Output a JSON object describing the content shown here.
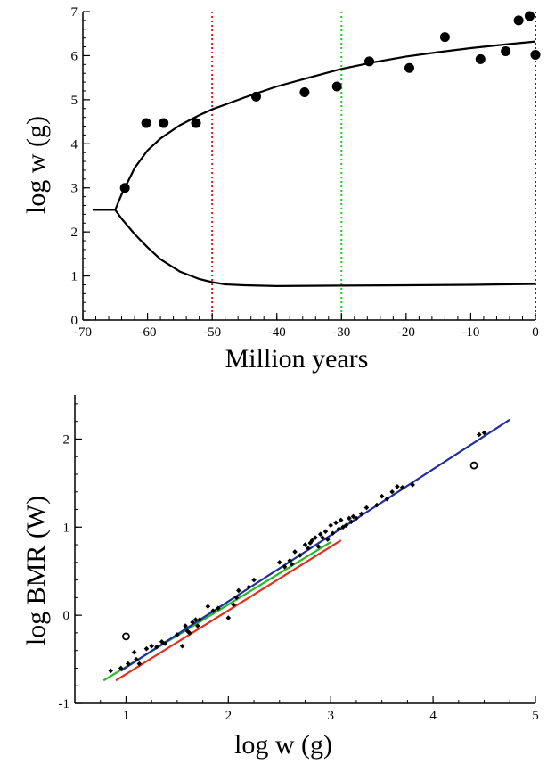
{
  "chart_data": [
    {
      "type": "scatter",
      "title": "",
      "xlabel": "Million years",
      "ylabel": "log w (g)",
      "xlim": [
        -70,
        0
      ],
      "ylim": [
        0,
        7
      ],
      "xticks": [
        "-70",
        "-60",
        "-50",
        "-40",
        "-30",
        "-20",
        "-10",
        "0"
      ],
      "yticks": [
        "0",
        "1",
        "2",
        "3",
        "4",
        "5",
        "6",
        "7"
      ],
      "grid": false,
      "series": [
        {
          "kind": "points",
          "marker": "filled-circle",
          "color": "#000000",
          "x": [
            -63.5,
            -60.2,
            -57.5,
            -52.5,
            -43.2,
            -35.7,
            -30.7,
            -25.7,
            -19.5,
            -14.0,
            -8.5,
            -4.6,
            -2.6,
            -0.9,
            0.0
          ],
          "y": [
            3.0,
            4.47,
            4.47,
            4.47,
            5.07,
            5.17,
            5.3,
            5.87,
            5.72,
            6.42,
            5.92,
            6.1,
            6.8,
            6.9,
            6.02
          ]
        },
        {
          "kind": "line",
          "color": "#000000",
          "x": [
            -68.5,
            -65,
            -64,
            -62,
            -60,
            -58,
            -55,
            -52,
            -50,
            -45,
            -40,
            -35,
            -30,
            -25,
            -20,
            -15,
            -10,
            -5,
            0
          ],
          "y": [
            2.5,
            2.5,
            2.85,
            3.45,
            3.85,
            4.12,
            4.42,
            4.65,
            4.78,
            5.05,
            5.3,
            5.5,
            5.7,
            5.85,
            5.98,
            6.08,
            6.17,
            6.25,
            6.32
          ]
        },
        {
          "kind": "line",
          "color": "#000000",
          "x": [
            -65,
            -64,
            -62,
            -60,
            -58,
            -55,
            -52,
            -50,
            -48,
            -45,
            -40,
            -30,
            -20,
            -10,
            0
          ],
          "y": [
            2.5,
            2.3,
            1.95,
            1.65,
            1.38,
            1.1,
            0.93,
            0.86,
            0.81,
            0.79,
            0.77,
            0.78,
            0.79,
            0.8,
            0.82
          ]
        }
      ],
      "vlines": [
        {
          "x": -50,
          "color": "#d62020",
          "style": "dotted"
        },
        {
          "x": -30,
          "color": "#22cc22",
          "style": "dotted"
        },
        {
          "x": 0,
          "color": "#2222cc",
          "style": "dotted"
        }
      ]
    },
    {
      "type": "scatter",
      "title": "",
      "xlabel": "log w (g)",
      "ylabel": "log BMR (W)",
      "xlim": [
        0.5,
        5
      ],
      "ylim": [
        -1,
        2.5
      ],
      "xticks": [
        "1",
        "2",
        "3",
        "4",
        "5"
      ],
      "yticks": [
        "-1",
        "0",
        "1",
        "2"
      ],
      "grid": false,
      "series": [
        {
          "kind": "points",
          "marker": "filled-diamond",
          "color": "#000000",
          "x": [
            0.85,
            0.95,
            1.02,
            1.08,
            1.1,
            1.13,
            1.2,
            1.25,
            1.3,
            1.35,
            1.38,
            1.5,
            1.55,
            1.58,
            1.6,
            1.62,
            1.65,
            1.68,
            1.7,
            1.72,
            1.8,
            1.85,
            1.9,
            2.0,
            2.05,
            2.08,
            2.1,
            2.2,
            2.25,
            2.5,
            2.55,
            2.6,
            2.62,
            2.65,
            2.7,
            2.75,
            2.78,
            2.8,
            2.82,
            2.85,
            2.88,
            2.9,
            2.92,
            2.95,
            2.97,
            3.0,
            3.02,
            3.05,
            3.08,
            3.1,
            3.12,
            3.15,
            3.18,
            3.2,
            3.22,
            3.25,
            3.3,
            3.35,
            3.45,
            3.5,
            3.55,
            3.6,
            3.65,
            3.7,
            3.8,
            4.45,
            4.5
          ],
          "y": [
            -0.63,
            -0.6,
            -0.55,
            -0.42,
            -0.5,
            -0.55,
            -0.38,
            -0.35,
            -0.36,
            -0.3,
            -0.32,
            -0.22,
            -0.35,
            -0.12,
            -0.18,
            -0.2,
            -0.08,
            -0.05,
            -0.12,
            -0.05,
            0.1,
            0.05,
            0.08,
            -0.03,
            0.12,
            0.2,
            0.28,
            0.32,
            0.4,
            0.6,
            0.55,
            0.62,
            0.58,
            0.72,
            0.68,
            0.8,
            0.76,
            0.82,
            0.85,
            0.88,
            0.78,
            0.92,
            0.88,
            0.95,
            0.86,
            1.02,
            0.93,
            1.05,
            0.98,
            1.08,
            1.0,
            1.02,
            1.1,
            1.06,
            1.12,
            1.1,
            1.15,
            1.22,
            1.25,
            1.35,
            1.32,
            1.4,
            1.46,
            1.45,
            1.48,
            2.05,
            2.07
          ]
        },
        {
          "kind": "points",
          "marker": "open-circle",
          "color": "#000000",
          "x": [
            1.0,
            4.4
          ],
          "y": [
            -0.24,
            1.7
          ]
        },
        {
          "kind": "line",
          "color": "#e0301e",
          "x": [
            0.9,
            3.1
          ],
          "y": [
            -0.74,
            0.85
          ]
        },
        {
          "kind": "line",
          "color": "#22bb22",
          "x": [
            0.78,
            3.0
          ],
          "y": [
            -0.74,
            0.83
          ]
        },
        {
          "kind": "line",
          "color": "#1f2f9f",
          "x": [
            0.95,
            4.75
          ],
          "y": [
            -0.63,
            2.22
          ]
        }
      ]
    }
  ]
}
